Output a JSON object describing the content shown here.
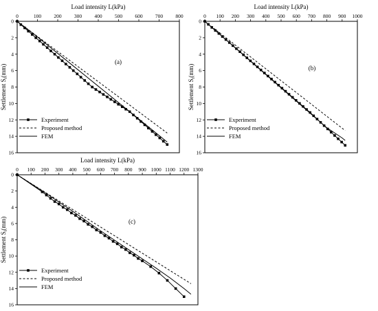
{
  "chart_data": [
    {
      "type": "line",
      "panel_label": "(a)",
      "title": "",
      "xlabel": "Load intensity L(kPa)",
      "ylabel": "Settlement S",
      "ylabel_sub": "t",
      "ylabel_unit": "(mm)",
      "xlim": [
        0,
        800
      ],
      "ylim": [
        0,
        16
      ],
      "x_ticks": [
        0,
        100,
        200,
        300,
        400,
        500,
        600,
        700,
        800
      ],
      "y_ticks": [
        0,
        2,
        4,
        6,
        8,
        10,
        12,
        14,
        16
      ],
      "x_axis_position": "top",
      "y_inverted": true,
      "legend_position": "bottom-left",
      "series": [
        {
          "name": "Experiment",
          "style": "solid-square-markers",
          "x": [
            0,
            18,
            37,
            55,
            74,
            92,
            111,
            129,
            148,
            166,
            185,
            203,
            222,
            240,
            259,
            277,
            296,
            314,
            333,
            351,
            370,
            388,
            407,
            425,
            444,
            462,
            481,
            499,
            518,
            536,
            555,
            573,
            592,
            610,
            629,
            647,
            666,
            684,
            703,
            721,
            740
          ],
          "y": [
            0,
            0.4,
            0.8,
            1.2,
            1.6,
            2.0,
            2.4,
            2.8,
            3.2,
            3.6,
            4.0,
            4.4,
            4.8,
            5.2,
            5.6,
            6.0,
            6.4,
            6.8,
            7.2,
            7.6,
            8.0,
            8.3,
            8.6,
            8.9,
            9.2,
            9.5,
            9.8,
            10.1,
            10.4,
            10.7,
            11.0,
            11.4,
            11.8,
            12.2,
            12.6,
            13.0,
            13.4,
            13.8,
            14.2,
            14.6,
            15.0
          ]
        },
        {
          "name": "Proposed method",
          "style": "dashed",
          "x": [
            0,
            740
          ],
          "y": [
            0,
            13.6
          ]
        },
        {
          "name": "FEM",
          "style": "solid",
          "x": [
            0,
            100,
            200,
            300,
            400,
            500,
            600,
            700,
            740
          ],
          "y": [
            0,
            1.9,
            3.9,
            5.9,
            7.9,
            9.9,
            11.9,
            13.9,
            14.7
          ]
        }
      ]
    },
    {
      "type": "line",
      "panel_label": "(b)",
      "title": "",
      "xlabel": "Load intensity L(kPa)",
      "ylabel": "Settlement S",
      "ylabel_sub": "t",
      "ylabel_unit": "(mm)",
      "xlim": [
        0,
        1000
      ],
      "ylim": [
        0,
        16
      ],
      "x_ticks": [
        0,
        100,
        200,
        300,
        400,
        500,
        600,
        700,
        800,
        900,
        1000
      ],
      "y_ticks": [
        0,
        2,
        4,
        6,
        8,
        10,
        12,
        14,
        16
      ],
      "x_axis_position": "top",
      "y_inverted": true,
      "legend_position": "bottom-left",
      "series": [
        {
          "name": "Experiment",
          "style": "solid-square-markers",
          "x": [
            0,
            23,
            46,
            69,
            92,
            115,
            138,
            161,
            184,
            207,
            230,
            253,
            276,
            299,
            322,
            345,
            368,
            391,
            414,
            437,
            460,
            483,
            506,
            529,
            552,
            575,
            598,
            621,
            644,
            667,
            690,
            713,
            736,
            759,
            782,
            805,
            828,
            851,
            874,
            897,
            920
          ],
          "y": [
            0,
            0.37,
            0.74,
            1.11,
            1.48,
            1.85,
            2.22,
            2.59,
            2.96,
            3.33,
            3.7,
            4.07,
            4.44,
            4.81,
            5.18,
            5.55,
            5.92,
            6.29,
            6.66,
            7.03,
            7.4,
            7.77,
            8.14,
            8.51,
            8.88,
            9.25,
            9.62,
            9.99,
            10.36,
            10.73,
            11.1,
            11.5,
            11.9,
            12.3,
            12.7,
            13.1,
            13.5,
            13.9,
            14.3,
            14.7,
            15.1
          ]
        },
        {
          "name": "Proposed method",
          "style": "dashed",
          "x": [
            0,
            920
          ],
          "y": [
            0,
            13.3
          ]
        },
        {
          "name": "FEM",
          "style": "solid",
          "x": [
            0,
            100,
            200,
            300,
            400,
            500,
            600,
            700,
            800,
            900,
            920
          ],
          "y": [
            0,
            1.62,
            3.24,
            4.86,
            6.48,
            8.1,
            9.72,
            11.34,
            12.96,
            14.2,
            14.5
          ]
        }
      ]
    },
    {
      "type": "line",
      "panel_label": "(c)",
      "title": "",
      "xlabel": "Load intensity L(kPa)",
      "ylabel": "Settlement S",
      "ylabel_sub": "t",
      "ylabel_unit": "(mm)",
      "xlim": [
        0,
        1300
      ],
      "ylim": [
        0,
        16
      ],
      "x_ticks": [
        0,
        100,
        200,
        300,
        400,
        500,
        600,
        700,
        800,
        900,
        1000,
        1100,
        1200,
        1300
      ],
      "y_ticks": [
        0,
        2,
        4,
        6,
        8,
        10,
        12,
        14,
        16
      ],
      "x_axis_position": "top",
      "y_inverted": true,
      "legend_position": "bottom-left",
      "series": [
        {
          "name": "Experiment",
          "style": "solid-square-markers",
          "x": [
            0,
            180,
            210,
            240,
            270,
            300,
            330,
            360,
            390,
            420,
            450,
            480,
            510,
            540,
            570,
            600,
            630,
            660,
            690,
            720,
            750,
            780,
            810,
            840,
            870,
            900,
            960,
            1020,
            1080,
            1140,
            1200
          ],
          "y": [
            0,
            2.1,
            2.5,
            2.9,
            3.3,
            3.6,
            4.0,
            4.3,
            4.7,
            5.0,
            5.4,
            5.7,
            6.1,
            6.4,
            6.8,
            7.1,
            7.5,
            7.8,
            8.2,
            8.5,
            8.9,
            9.2,
            9.6,
            9.9,
            10.3,
            10.6,
            11.3,
            12.1,
            13.0,
            14.0,
            15.0
          ]
        },
        {
          "name": "Proposed method",
          "style": "dashed",
          "x": [
            0,
            1250
          ],
          "y": [
            0,
            13.4
          ]
        },
        {
          "name": "FEM",
          "style": "solid",
          "x": [
            0,
            200,
            400,
            600,
            800,
            1000,
            1100,
            1200,
            1250
          ],
          "y": [
            0,
            2.2,
            4.5,
            6.9,
            9.2,
            11.5,
            12.7,
            14.0,
            14.7
          ]
        }
      ]
    }
  ]
}
